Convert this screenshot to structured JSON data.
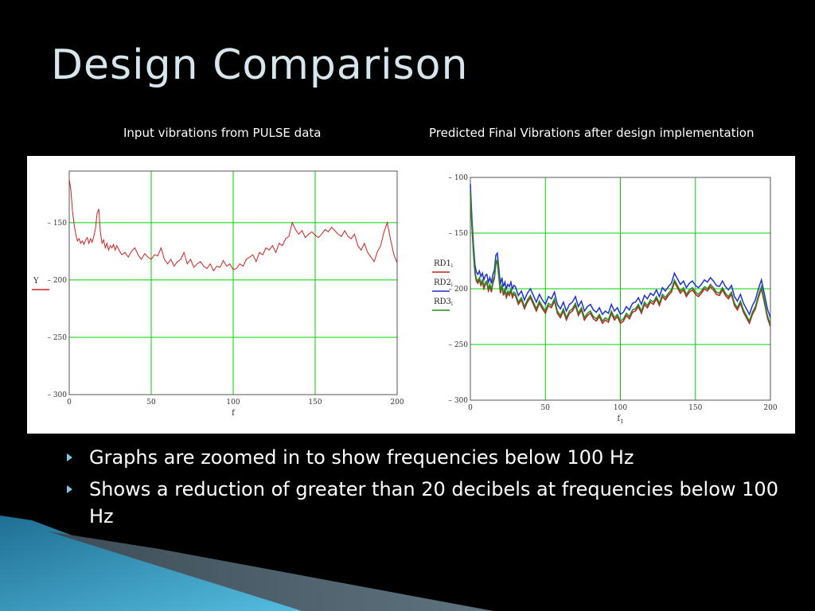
{
  "slide": {
    "title": "Design Comparison",
    "left_caption": "Input vibrations from PULSE data",
    "right_caption": "Predicted Final Vibrations after design implementation",
    "bullets": [
      "Graphs are zoomed in to show frequencies below 100 Hz",
      "Shows a reduction of greater than 20 decibels at frequencies below 100 Hz"
    ],
    "accent_color": "#7fc8de"
  },
  "chart_data": [
    {
      "type": "line",
      "xlabel": "f",
      "ylabel": "",
      "xlim": [
        0,
        200
      ],
      "ylim": [
        -300,
        -105
      ],
      "xticks": [
        0,
        50,
        100,
        150,
        200
      ],
      "yticks": [
        -150,
        -200,
        -250,
        -300
      ],
      "ytick_labels": [
        "– 150",
        "– 200",
        "– 250",
        "– 300"
      ],
      "grid": true,
      "grid_color": "#00d000",
      "legend": "left",
      "series": [
        {
          "name": "Y",
          "color": "#d42020",
          "x": [
            0,
            1,
            2,
            3,
            4,
            5,
            6,
            7,
            8,
            9,
            10,
            11,
            12,
            13,
            14,
            15,
            16,
            17,
            18,
            19,
            20,
            21,
            22,
            23,
            24,
            25,
            26,
            27,
            28,
            29,
            30,
            32,
            34,
            36,
            38,
            40,
            42,
            44,
            46,
            48,
            50,
            52,
            54,
            56,
            58,
            60,
            62,
            64,
            66,
            68,
            70,
            72,
            74,
            76,
            78,
            80,
            82,
            84,
            86,
            88,
            90,
            92,
            94,
            96,
            98,
            100,
            102,
            104,
            106,
            108,
            110,
            112,
            114,
            116,
            118,
            120,
            122,
            124,
            126,
            128,
            130,
            132,
            134,
            136,
            138,
            140,
            142,
            144,
            146,
            148,
            150,
            152,
            154,
            156,
            158,
            160,
            162,
            164,
            166,
            168,
            170,
            172,
            174,
            176,
            178,
            180,
            182,
            184,
            186,
            188,
            190,
            192,
            194,
            196,
            198,
            200
          ],
          "values": [
            -112,
            -122,
            -140,
            -152,
            -160,
            -166,
            -164,
            -168,
            -166,
            -169,
            -165,
            -163,
            -168,
            -164,
            -167,
            -162,
            -155,
            -142,
            -138,
            -158,
            -168,
            -165,
            -172,
            -168,
            -174,
            -170,
            -172,
            -169,
            -174,
            -170,
            -173,
            -178,
            -176,
            -180,
            -175,
            -172,
            -178,
            -182,
            -177,
            -180,
            -182,
            -178,
            -179,
            -172,
            -182,
            -186,
            -182,
            -188,
            -184,
            -182,
            -176,
            -186,
            -182,
            -189,
            -186,
            -184,
            -188,
            -190,
            -186,
            -192,
            -188,
            -189,
            -183,
            -188,
            -186,
            -191,
            -190,
            -186,
            -188,
            -182,
            -180,
            -178,
            -184,
            -176,
            -178,
            -172,
            -174,
            -170,
            -176,
            -168,
            -170,
            -164,
            -162,
            -150,
            -156,
            -160,
            -157,
            -163,
            -160,
            -158,
            -161,
            -163,
            -160,
            -156,
            -158,
            -154,
            -157,
            -160,
            -162,
            -157,
            -162,
            -164,
            -160,
            -170,
            -174,
            -168,
            -176,
            -180,
            -184,
            -175,
            -170,
            -158,
            -150,
            -165,
            -178,
            -185
          ]
        }
      ]
    },
    {
      "type": "line",
      "xlabel": "f1",
      "ylabel": "",
      "xlim": [
        0,
        200
      ],
      "ylim": [
        -300,
        -100
      ],
      "xticks": [
        0,
        50,
        100,
        150,
        200
      ],
      "yticks": [
        -100,
        -150,
        -200,
        -250,
        -300
      ],
      "ytick_labels": [
        "– 100",
        "– 150",
        "– 200",
        "– 250",
        "– 300"
      ],
      "grid": true,
      "grid_color": "#00d000",
      "legend": "left",
      "series": [
        {
          "name": "RD1",
          "color": "#c02020",
          "offset_from_base": 8,
          "x": [
            0,
            1,
            2,
            3,
            4,
            5,
            6,
            7,
            8,
            9,
            10,
            11,
            12,
            13,
            14,
            15,
            16,
            17,
            18,
            19,
            20,
            21,
            22,
            23,
            24,
            25,
            26,
            27,
            28,
            29,
            30,
            32,
            34,
            36,
            38,
            40,
            42,
            44,
            46,
            48,
            50,
            52,
            54,
            56,
            58,
            60,
            62,
            64,
            66,
            68,
            70,
            72,
            74,
            76,
            78,
            80,
            82,
            84,
            86,
            88,
            90,
            92,
            94,
            96,
            98,
            100,
            102,
            104,
            106,
            108,
            110,
            112,
            114,
            116,
            118,
            120,
            122,
            124,
            126,
            128,
            130,
            132,
            134,
            136,
            138,
            140,
            142,
            144,
            146,
            148,
            150,
            152,
            154,
            156,
            158,
            160,
            162,
            164,
            166,
            168,
            170,
            172,
            174,
            176,
            178,
            180,
            182,
            184,
            186,
            188,
            190,
            192,
            194,
            196,
            198,
            200
          ],
          "values": [
            -106,
            -136,
            -160,
            -178,
            -185,
            -187,
            -184,
            -189,
            -186,
            -192,
            -188,
            -187,
            -194,
            -190,
            -195,
            -187,
            -183,
            -170,
            -168,
            -182,
            -196,
            -190,
            -198,
            -194,
            -200,
            -196,
            -198,
            -194,
            -200,
            -197,
            -198,
            -206,
            -202,
            -210,
            -204,
            -200,
            -206,
            -212,
            -205,
            -210,
            -214,
            -207,
            -209,
            -203,
            -214,
            -218,
            -212,
            -220,
            -214,
            -212,
            -207,
            -216,
            -211,
            -220,
            -216,
            -214,
            -219,
            -221,
            -217,
            -223,
            -220,
            -222,
            -214,
            -220,
            -217,
            -223,
            -221,
            -216,
            -219,
            -213,
            -212,
            -208,
            -214,
            -206,
            -209,
            -204,
            -206,
            -201,
            -207,
            -199,
            -202,
            -198,
            -195,
            -186,
            -191,
            -196,
            -193,
            -199,
            -195,
            -193,
            -197,
            -199,
            -196,
            -192,
            -194,
            -190,
            -193,
            -197,
            -198,
            -193,
            -198,
            -201,
            -197,
            -207,
            -211,
            -205,
            -213,
            -218,
            -223,
            -215,
            -210,
            -200,
            -192,
            -205,
            -218,
            -226
          ]
        },
        {
          "name": "RD2",
          "color": "#1f2fd0",
          "offset_from_base": 0,
          "x": [
            0,
            1,
            2,
            3,
            4,
            5,
            6,
            7,
            8,
            9,
            10,
            11,
            12,
            13,
            14,
            15,
            16,
            17,
            18,
            19,
            20,
            21,
            22,
            23,
            24,
            25,
            26,
            27,
            28,
            29,
            30,
            32,
            34,
            36,
            38,
            40,
            42,
            44,
            46,
            48,
            50,
            52,
            54,
            56,
            58,
            60,
            62,
            64,
            66,
            68,
            70,
            72,
            74,
            76,
            78,
            80,
            82,
            84,
            86,
            88,
            90,
            92,
            94,
            96,
            98,
            100,
            102,
            104,
            106,
            108,
            110,
            112,
            114,
            116,
            118,
            120,
            122,
            124,
            126,
            128,
            130,
            132,
            134,
            136,
            138,
            140,
            142,
            144,
            146,
            148,
            150,
            152,
            154,
            156,
            158,
            160,
            162,
            164,
            166,
            168,
            170,
            172,
            174,
            176,
            178,
            180,
            182,
            184,
            186,
            188,
            190,
            192,
            194,
            196,
            198,
            200
          ],
          "values": [
            -106,
            -136,
            -160,
            -178,
            -185,
            -187,
            -184,
            -189,
            -186,
            -192,
            -188,
            -187,
            -194,
            -190,
            -195,
            -187,
            -183,
            -170,
            -168,
            -182,
            -196,
            -190,
            -198,
            -194,
            -200,
            -196,
            -198,
            -194,
            -200,
            -197,
            -198,
            -206,
            -202,
            -210,
            -204,
            -200,
            -206,
            -212,
            -205,
            -210,
            -214,
            -207,
            -209,
            -203,
            -214,
            -218,
            -212,
            -220,
            -214,
            -212,
            -207,
            -216,
            -211,
            -220,
            -216,
            -214,
            -219,
            -221,
            -217,
            -223,
            -220,
            -222,
            -214,
            -220,
            -217,
            -223,
            -221,
            -216,
            -219,
            -213,
            -212,
            -208,
            -214,
            -206,
            -209,
            -204,
            -206,
            -201,
            -207,
            -199,
            -202,
            -198,
            -195,
            -186,
            -191,
            -196,
            -193,
            -199,
            -195,
            -193,
            -197,
            -199,
            -196,
            -192,
            -194,
            -190,
            -193,
            -197,
            -198,
            -193,
            -198,
            -201,
            -197,
            -207,
            -211,
            -205,
            -213,
            -218,
            -223,
            -215,
            -210,
            -200,
            -192,
            -205,
            -218,
            -226
          ]
        },
        {
          "name": "RD3",
          "color": "#208a20",
          "offset_from_base": 6,
          "x": [
            0,
            1,
            2,
            3,
            4,
            5,
            6,
            7,
            8,
            9,
            10,
            11,
            12,
            13,
            14,
            15,
            16,
            17,
            18,
            19,
            20,
            21,
            22,
            23,
            24,
            25,
            26,
            27,
            28,
            29,
            30,
            32,
            34,
            36,
            38,
            40,
            42,
            44,
            46,
            48,
            50,
            52,
            54,
            56,
            58,
            60,
            62,
            64,
            66,
            68,
            70,
            72,
            74,
            76,
            78,
            80,
            82,
            84,
            86,
            88,
            90,
            92,
            94,
            96,
            98,
            100,
            102,
            104,
            106,
            108,
            110,
            112,
            114,
            116,
            118,
            120,
            122,
            124,
            126,
            128,
            130,
            132,
            134,
            136,
            138,
            140,
            142,
            144,
            146,
            148,
            150,
            152,
            154,
            156,
            158,
            160,
            162,
            164,
            166,
            168,
            170,
            172,
            174,
            176,
            178,
            180,
            182,
            184,
            186,
            188,
            190,
            192,
            194,
            196,
            198,
            200
          ],
          "values": [
            -106,
            -136,
            -160,
            -178,
            -185,
            -187,
            -184,
            -189,
            -186,
            -192,
            -188,
            -187,
            -194,
            -190,
            -195,
            -187,
            -183,
            -170,
            -168,
            -182,
            -196,
            -190,
            -198,
            -194,
            -200,
            -196,
            -198,
            -194,
            -200,
            -197,
            -198,
            -206,
            -202,
            -210,
            -204,
            -200,
            -206,
            -212,
            -205,
            -210,
            -214,
            -207,
            -209,
            -203,
            -214,
            -218,
            -212,
            -220,
            -214,
            -212,
            -207,
            -216,
            -211,
            -220,
            -216,
            -214,
            -219,
            -221,
            -217,
            -223,
            -220,
            -222,
            -214,
            -220,
            -217,
            -223,
            -221,
            -216,
            -219,
            -213,
            -212,
            -208,
            -214,
            -206,
            -209,
            -204,
            -206,
            -201,
            -207,
            -199,
            -202,
            -198,
            -195,
            -186,
            -191,
            -196,
            -193,
            -199,
            -195,
            -193,
            -197,
            -199,
            -196,
            -192,
            -194,
            -190,
            -193,
            -197,
            -198,
            -193,
            -198,
            -201,
            -197,
            -207,
            -211,
            -205,
            -213,
            -218,
            -223,
            -215,
            -210,
            -200,
            -192,
            -205,
            -218,
            -226
          ]
        }
      ]
    }
  ]
}
